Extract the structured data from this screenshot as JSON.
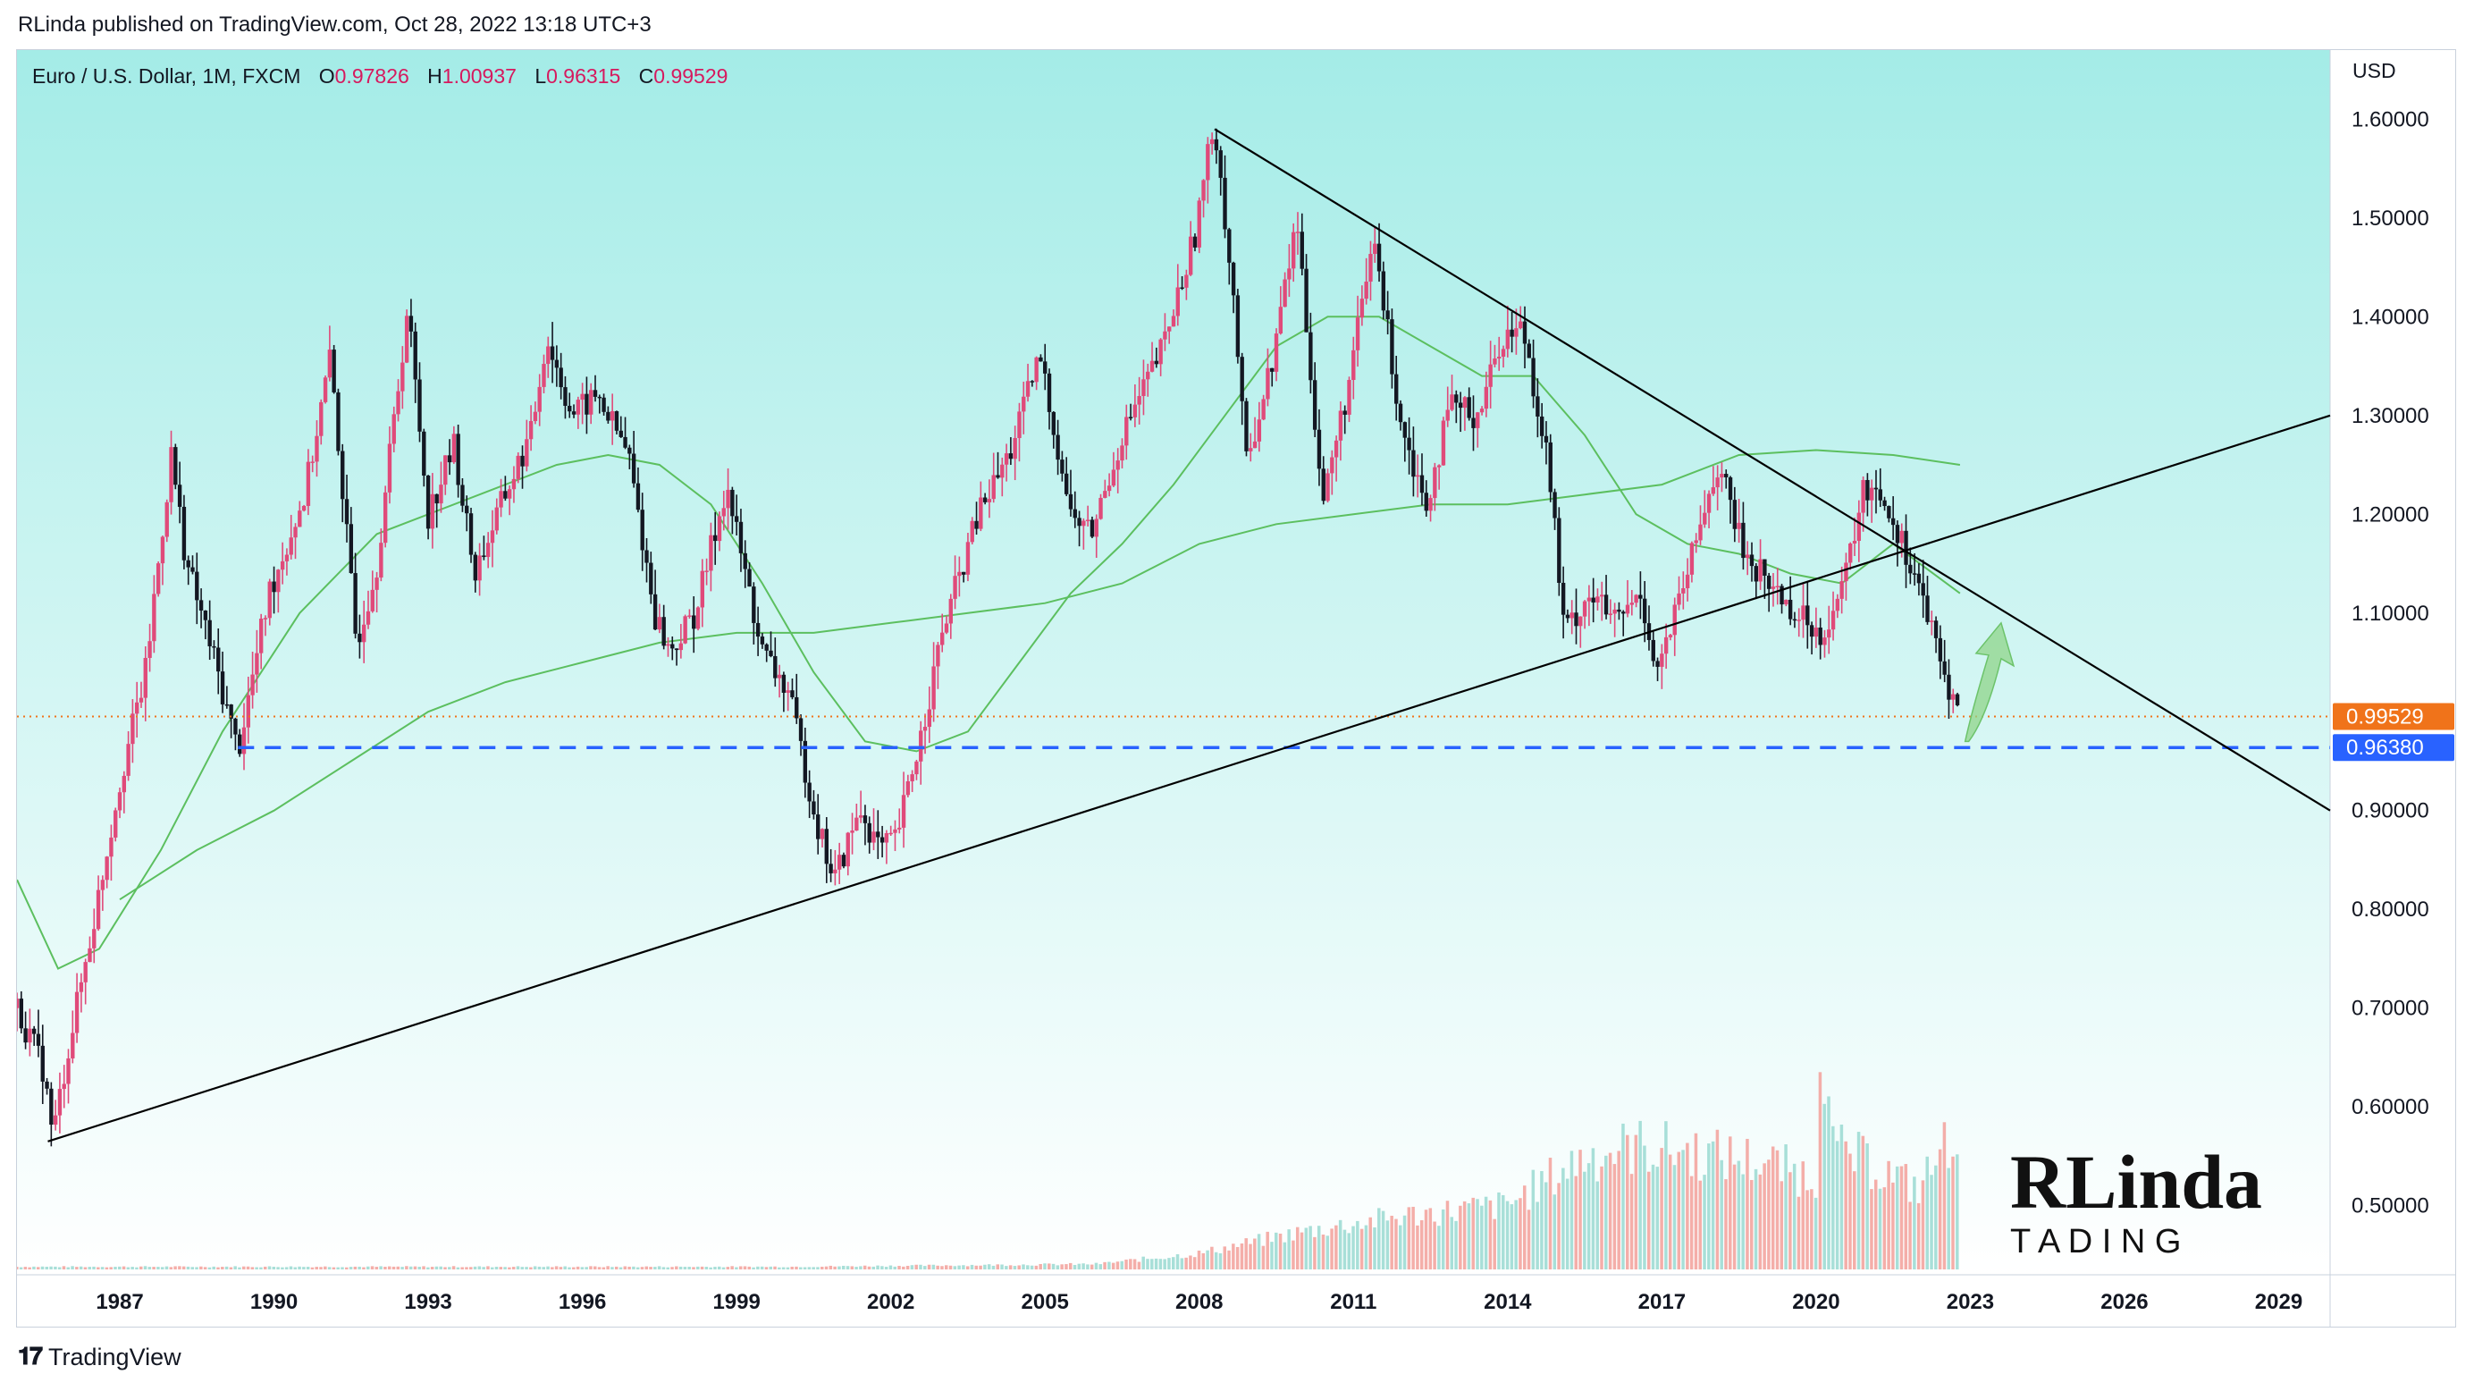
{
  "header": {
    "published_by": "RLinda published on TradingView.com, Oct 28, 2022 13:18 UTC+3"
  },
  "legend": {
    "symbol": "Euro / U.S. Dollar, 1M, FXCM",
    "o_label": "O",
    "o_value": "0.97826",
    "h_label": "H",
    "h_value": "1.00937",
    "l_label": "L",
    "l_value": "0.96315",
    "c_label": "C",
    "c_value": "0.99529"
  },
  "footer": {
    "brand": "TradingView"
  },
  "brand_logo": {
    "line1": "RLinda",
    "line2": "T  A D I N G"
  },
  "colors": {
    "bull": "#e04a7a",
    "bear": "#131722",
    "ma": "#5cbf5f",
    "level": "#2962ff",
    "close_badge": "#f0731a",
    "bg_top": "#a4ece7",
    "bg_bottom": "#ffffff"
  },
  "chart_data": {
    "type": "candlestick",
    "title": "Euro / U.S. Dollar, 1M, FXCM",
    "y_unit": "USD",
    "ylim": [
      0.43,
      1.67
    ],
    "xlim": [
      1985.0,
      2030.0
    ],
    "y_ticks": [
      "1.60000",
      "1.50000",
      "1.40000",
      "1.30000",
      "1.20000",
      "1.10000",
      "1.00000",
      "0.90000",
      "0.80000",
      "0.70000",
      "0.60000",
      "0.50000"
    ],
    "x_ticks": [
      "1987",
      "1990",
      "1993",
      "1996",
      "1999",
      "2002",
      "2005",
      "2008",
      "2011",
      "2014",
      "2017",
      "2020",
      "2023",
      "2026",
      "2029"
    ],
    "price_path": [
      [
        1985.0,
        0.7
      ],
      [
        1985.5,
        0.64
      ],
      [
        1985.7,
        0.57
      ],
      [
        1986.0,
        0.66
      ],
      [
        1986.5,
        0.79
      ],
      [
        1987.0,
        0.93
      ],
      [
        1987.5,
        1.04
      ],
      [
        1988.0,
        1.26
      ],
      [
        1988.3,
        1.15
      ],
      [
        1988.8,
        1.06
      ],
      [
        1989.3,
        0.96
      ],
      [
        1989.9,
        1.12
      ],
      [
        1990.6,
        1.22
      ],
      [
        1991.1,
        1.36
      ],
      [
        1991.6,
        1.07
      ],
      [
        1992.0,
        1.15
      ],
      [
        1992.6,
        1.41
      ],
      [
        1993.0,
        1.2
      ],
      [
        1993.5,
        1.27
      ],
      [
        1993.9,
        1.14
      ],
      [
        1994.5,
        1.22
      ],
      [
        1995.0,
        1.28
      ],
      [
        1995.3,
        1.38
      ],
      [
        1995.8,
        1.3
      ],
      [
        1996.3,
        1.32
      ],
      [
        1996.9,
        1.26
      ],
      [
        1997.4,
        1.1
      ],
      [
        1997.7,
        1.06
      ],
      [
        1998.2,
        1.1
      ],
      [
        1998.8,
        1.23
      ],
      [
        1999.0,
        1.18
      ],
      [
        1999.5,
        1.06
      ],
      [
        2000.0,
        1.02
      ],
      [
        2000.6,
        0.88
      ],
      [
        2000.9,
        0.83
      ],
      [
        2001.4,
        0.9
      ],
      [
        2001.8,
        0.86
      ],
      [
        2002.1,
        0.87
      ],
      [
        2002.6,
        0.98
      ],
      [
        2003.0,
        1.08
      ],
      [
        2003.7,
        1.2
      ],
      [
        2004.3,
        1.26
      ],
      [
        2004.9,
        1.36
      ],
      [
        2005.5,
        1.2
      ],
      [
        2005.9,
        1.18
      ],
      [
        2006.5,
        1.28
      ],
      [
        2007.3,
        1.37
      ],
      [
        2007.9,
        1.48
      ],
      [
        2008.3,
        1.6
      ],
      [
        2008.7,
        1.4
      ],
      [
        2008.9,
        1.25
      ],
      [
        2009.4,
        1.35
      ],
      [
        2009.9,
        1.5
      ],
      [
        2010.4,
        1.21
      ],
      [
        2010.9,
        1.33
      ],
      [
        2011.4,
        1.48
      ],
      [
        2011.9,
        1.3
      ],
      [
        2012.4,
        1.21
      ],
      [
        2012.9,
        1.31
      ],
      [
        2013.4,
        1.3
      ],
      [
        2013.9,
        1.38
      ],
      [
        2014.3,
        1.39
      ],
      [
        2014.8,
        1.25
      ],
      [
        2015.1,
        1.08
      ],
      [
        2015.6,
        1.12
      ],
      [
        2016.1,
        1.09
      ],
      [
        2016.6,
        1.12
      ],
      [
        2016.9,
        1.04
      ],
      [
        2017.4,
        1.12
      ],
      [
        2017.9,
        1.22
      ],
      [
        2018.1,
        1.25
      ],
      [
        2018.6,
        1.16
      ],
      [
        2019.1,
        1.13
      ],
      [
        2019.6,
        1.1
      ],
      [
        2020.1,
        1.08
      ],
      [
        2020.5,
        1.12
      ],
      [
        2020.9,
        1.22
      ],
      [
        2021.2,
        1.23
      ],
      [
        2021.6,
        1.18
      ],
      [
        2022.0,
        1.13
      ],
      [
        2022.4,
        1.05
      ],
      [
        2022.8,
        0.9952
      ]
    ],
    "close": 0.99529,
    "levels": [
      {
        "name": "close-level",
        "value": 0.99529,
        "label": "0.99529"
      },
      {
        "name": "support-level",
        "value": 0.9638,
        "label": "0.96380"
      }
    ],
    "trendlines": [
      {
        "name": "ascending-trendline",
        "from": [
          1985.6,
          0.565
        ],
        "to": [
          2030.0,
          1.3
        ]
      },
      {
        "name": "descending-trendline",
        "from": [
          2008.3,
          1.59
        ],
        "to": [
          2030.0,
          0.9
        ]
      }
    ],
    "moving_averages": [
      {
        "name": "fast-ma",
        "points": [
          [
            1985.0,
            0.83
          ],
          [
            1985.8,
            0.74
          ],
          [
            1986.6,
            0.76
          ],
          [
            1987.8,
            0.86
          ],
          [
            1989.0,
            0.98
          ],
          [
            1990.5,
            1.1
          ],
          [
            1992.0,
            1.18
          ],
          [
            1993.0,
            1.2
          ],
          [
            1994.5,
            1.23
          ],
          [
            1995.5,
            1.25
          ],
          [
            1996.5,
            1.26
          ],
          [
            1997.5,
            1.25
          ],
          [
            1998.5,
            1.21
          ],
          [
            1999.5,
            1.13
          ],
          [
            2000.5,
            1.04
          ],
          [
            2001.5,
            0.97
          ],
          [
            2002.5,
            0.96
          ],
          [
            2003.5,
            0.98
          ],
          [
            2004.5,
            1.05
          ],
          [
            2005.5,
            1.12
          ],
          [
            2006.5,
            1.17
          ],
          [
            2007.5,
            1.23
          ],
          [
            2008.5,
            1.3
          ],
          [
            2009.5,
            1.37
          ],
          [
            2010.5,
            1.4
          ],
          [
            2011.5,
            1.4
          ],
          [
            2012.5,
            1.37
          ],
          [
            2013.5,
            1.34
          ],
          [
            2014.5,
            1.34
          ],
          [
            2015.5,
            1.28
          ],
          [
            2016.5,
            1.2
          ],
          [
            2017.5,
            1.17
          ],
          [
            2018.5,
            1.16
          ],
          [
            2019.5,
            1.14
          ],
          [
            2020.5,
            1.13
          ],
          [
            2021.5,
            1.17
          ],
          [
            2022.8,
            1.12
          ]
        ]
      },
      {
        "name": "slow-ma",
        "points": [
          [
            1987.0,
            0.81
          ],
          [
            1988.5,
            0.86
          ],
          [
            1990.0,
            0.9
          ],
          [
            1991.5,
            0.95
          ],
          [
            1993.0,
            1.0
          ],
          [
            1994.5,
            1.03
          ],
          [
            1996.0,
            1.05
          ],
          [
            1997.5,
            1.07
          ],
          [
            1999.0,
            1.08
          ],
          [
            2000.5,
            1.08
          ],
          [
            2002.0,
            1.09
          ],
          [
            2003.5,
            1.1
          ],
          [
            2005.0,
            1.11
          ],
          [
            2006.5,
            1.13
          ],
          [
            2008.0,
            1.17
          ],
          [
            2009.5,
            1.19
          ],
          [
            2011.0,
            1.2
          ],
          [
            2012.5,
            1.21
          ],
          [
            2014.0,
            1.21
          ],
          [
            2015.5,
            1.22
          ],
          [
            2017.0,
            1.23
          ],
          [
            2018.5,
            1.26
          ],
          [
            2020.0,
            1.265
          ],
          [
            2021.5,
            1.26
          ],
          [
            2022.8,
            1.25
          ]
        ]
      }
    ],
    "volume_ylim": [
      0,
      1.0
    ],
    "volume_profile": [
      [
        1985,
        0.01
      ],
      [
        2000,
        0.01
      ],
      [
        2006,
        0.02
      ],
      [
        2008,
        0.06
      ],
      [
        2010,
        0.14
      ],
      [
        2012,
        0.2
      ],
      [
        2014,
        0.24
      ],
      [
        2015.5,
        0.42
      ],
      [
        2016.5,
        0.46
      ],
      [
        2017.5,
        0.44
      ],
      [
        2019,
        0.4
      ],
      [
        2020,
        0.34
      ],
      [
        2020.1,
        1.0
      ],
      [
        2020.3,
        0.45
      ],
      [
        2021,
        0.4
      ],
      [
        2022,
        0.3
      ],
      [
        2022.8,
        0.55
      ]
    ],
    "annotations": [
      {
        "name": "rebound-arrow",
        "type": "arrow-up",
        "from": [
          2022.9,
          0.97
        ],
        "to": [
          2023.6,
          1.09
        ]
      }
    ]
  }
}
